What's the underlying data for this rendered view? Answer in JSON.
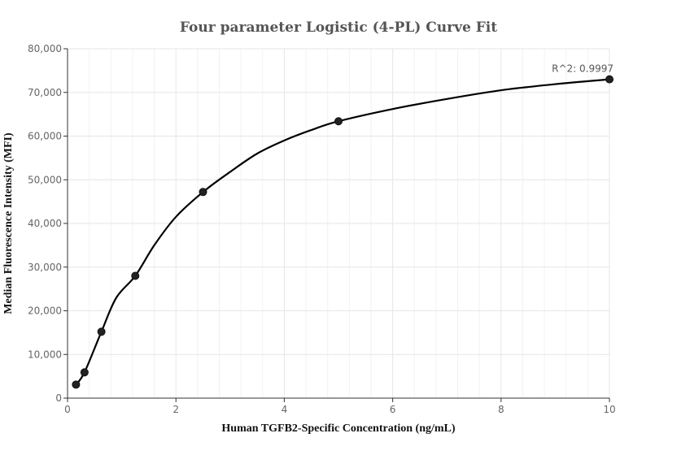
{
  "chart_data": {
    "type": "scatter",
    "title": "Four parameter Logistic (4-PL) Curve Fit",
    "xlabel": "Human TGFB2-Specific Concentration (ng/mL)",
    "ylabel": "Median Fluorescence Intensity (MFI)",
    "xlim": [
      0,
      10
    ],
    "ylim": [
      0,
      80000
    ],
    "x_ticks": [
      0,
      2,
      4,
      6,
      8,
      10
    ],
    "x_tick_labels": [
      "0",
      "2",
      "4",
      "6",
      "8",
      "10"
    ],
    "y_ticks": [
      0,
      10000,
      20000,
      30000,
      40000,
      50000,
      60000,
      70000,
      80000
    ],
    "y_tick_labels": [
      "0",
      "10,000",
      "20,000",
      "30,000",
      "40,000",
      "50,000",
      "60,000",
      "70,000",
      "80,000"
    ],
    "grid": true,
    "series": [
      {
        "type": "scatter",
        "x": [
          0.156,
          0.313,
          0.625,
          1.25,
          2.5,
          5,
          10
        ],
        "y": [
          3100,
          5900,
          15200,
          28000,
          47200,
          63400,
          73000
        ]
      },
      {
        "type": "line",
        "x": [
          0.156,
          0.313,
          0.625,
          0.9,
          1.25,
          1.6,
          2.0,
          2.5,
          3.0,
          3.5,
          4.0,
          4.5,
          5.0,
          6.0,
          7.0,
          8.0,
          9.0,
          10.0
        ],
        "y": [
          3100,
          5900,
          15200,
          23000,
          28000,
          35000,
          41500,
          47200,
          51800,
          56000,
          59000,
          61400,
          63400,
          66200,
          68500,
          70500,
          71900,
          73000
        ]
      }
    ],
    "annotations": [
      {
        "text": "R^2: 0.9997",
        "x": 10,
        "y": 73000
      }
    ]
  }
}
